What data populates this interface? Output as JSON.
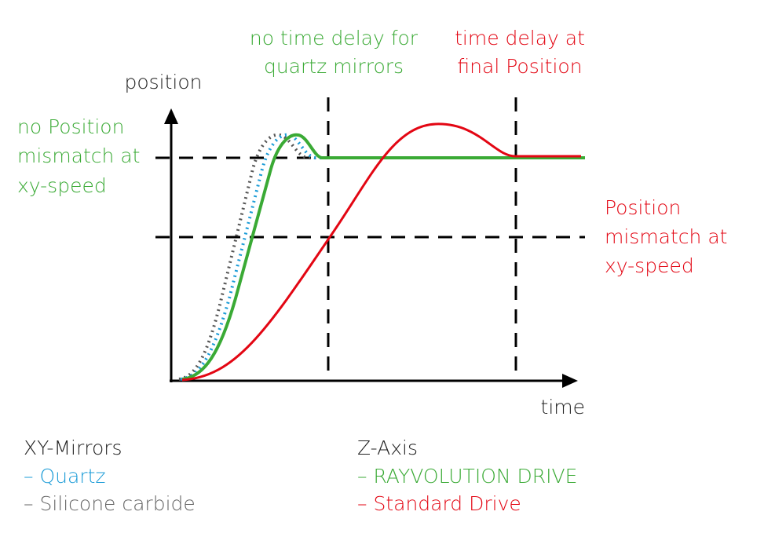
{
  "axes": {
    "y_label": "position",
    "x_label": "time"
  },
  "annotations": {
    "quartz_delay": [
      "no time delay for",
      "quartz mirrors"
    ],
    "final_delay": [
      "time delay at",
      "final Position"
    ],
    "no_mismatch": [
      "no Position",
      "mismatch at",
      "xy-speed"
    ],
    "mismatch": [
      "Position",
      "mismatch at",
      "xy-speed"
    ]
  },
  "legend": {
    "xy_mirrors": {
      "title": "XY-Mirrors",
      "items": [
        "– Quartz",
        "– Silicone carbide"
      ]
    },
    "z_axis": {
      "title": "Z-Axis",
      "items": [
        "– RAYVOLUTION DRIVE",
        "– Standard Drive"
      ]
    }
  }
}
